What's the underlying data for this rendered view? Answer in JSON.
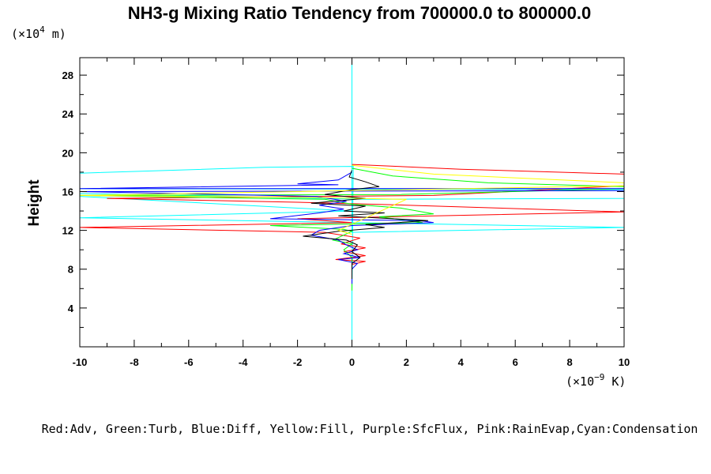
{
  "chart_data": {
    "type": "line",
    "title": "NH3-g Mixing Ratio Tendency from 700000.0 to 800000.0",
    "ylabel": "Height",
    "y_unit_prefix": "(×10",
    "y_unit_exp": "4",
    "y_unit_suffix": " m)",
    "x_unit_prefix": "(×10",
    "x_unit_exp": "−9",
    "x_unit_suffix": " K)",
    "legend_text": "Red:Adv, Green:Turb, Blue:Diff, Yellow:Fill, Purple:SfcFlux, Pink:RainEvap,Cyan:Condensation",
    "xlim": [
      -10,
      10
    ],
    "ylim": [
      0,
      29.8
    ],
    "x_ticks": [
      -10,
      -8,
      -6,
      -4,
      -2,
      0,
      2,
      4,
      6,
      8,
      10
    ],
    "x_tick_labels": [
      "-10",
      "-8",
      "-6",
      "-4",
      "-2",
      "0",
      "2",
      "4",
      "6",
      "8",
      "10"
    ],
    "y_ticks": [
      4,
      8,
      12,
      16,
      20,
      24,
      28
    ],
    "y_tick_labels": [
      "4",
      "8",
      "12",
      "16",
      "20",
      "24",
      "28"
    ],
    "series": [
      {
        "color": "#00ffff",
        "points": [
          [
            0,
            0
          ],
          [
            0,
            5.5
          ],
          [
            0.05,
            18.6
          ],
          [
            -3.2,
            18.5
          ],
          [
            -10,
            17.9
          ],
          [
            -10,
            16.3
          ],
          [
            10,
            16.2
          ],
          [
            10,
            15.3
          ],
          [
            0.5,
            15.2
          ],
          [
            -10,
            15.8
          ],
          [
            -10,
            15.5
          ],
          [
            0,
            14.0
          ],
          [
            -10,
            13.3
          ],
          [
            10,
            12.3
          ],
          [
            0,
            11.8
          ],
          [
            0,
            29.8
          ]
        ]
      },
      {
        "color": "#ff0000",
        "points": [
          [
            0,
            18.8
          ],
          [
            4,
            18.3
          ],
          [
            10,
            17.8
          ],
          [
            10,
            16.6
          ],
          [
            3,
            15.6
          ],
          [
            -9,
            15.3
          ],
          [
            -2,
            14.9
          ],
          [
            2,
            14.6
          ],
          [
            10,
            13.9
          ],
          [
            -2,
            13.2
          ],
          [
            0,
            12.8
          ],
          [
            -10,
            12.3
          ],
          [
            -1,
            11.8
          ],
          [
            0.3,
            11.2
          ],
          [
            -0.4,
            10.6
          ],
          [
            0.5,
            10.2
          ],
          [
            -0.3,
            9.8
          ],
          [
            0.5,
            9.4
          ],
          [
            -0.6,
            9.0
          ],
          [
            0.5,
            8.8
          ],
          [
            0,
            8.5
          ]
        ]
      },
      {
        "color": "#00ff00",
        "points": [
          [
            0,
            18.4
          ],
          [
            1.5,
            17.6
          ],
          [
            5,
            16.9
          ],
          [
            10,
            16.5
          ],
          [
            10,
            16.3
          ],
          [
            1.8,
            15.7
          ],
          [
            -10,
            15.6
          ],
          [
            -1,
            15.2
          ],
          [
            0,
            14.7
          ],
          [
            1.8,
            14.3
          ],
          [
            3,
            13.7
          ],
          [
            1,
            13.4
          ],
          [
            2.6,
            12.8
          ],
          [
            -3,
            12.5
          ],
          [
            -0.3,
            12.1
          ],
          [
            0,
            11.9
          ],
          [
            -0.7,
            11.0
          ],
          [
            0,
            10.6
          ],
          [
            -0.3,
            10.0
          ],
          [
            0,
            9.2
          ],
          [
            0,
            5.8
          ]
        ]
      },
      {
        "color": "#0000ff",
        "points": [
          [
            0,
            18.0
          ],
          [
            -0.5,
            17.2
          ],
          [
            -2,
            16.8
          ],
          [
            -0.5,
            16.7
          ],
          [
            -10,
            16.3
          ],
          [
            10,
            16.3
          ],
          [
            10,
            16.1
          ],
          [
            -10,
            16.0
          ],
          [
            -1.3,
            15.5
          ],
          [
            -0.2,
            15.0
          ],
          [
            -1.2,
            14.6
          ],
          [
            -0.3,
            14.2
          ],
          [
            -1.2,
            13.8
          ],
          [
            -3,
            13.2
          ],
          [
            2.5,
            13.0
          ],
          [
            3,
            12.8
          ],
          [
            0,
            12.5
          ],
          [
            -1.2,
            12.0
          ],
          [
            -1.5,
            11.5
          ],
          [
            -0.5,
            11.0
          ],
          [
            -0.2,
            10.5
          ],
          [
            0.2,
            10.0
          ],
          [
            -0.3,
            9.6
          ],
          [
            0.3,
            9.2
          ],
          [
            -0.5,
            9.0
          ],
          [
            0.2,
            8.6
          ],
          [
            0,
            8.0
          ],
          [
            0,
            6.5
          ]
        ]
      },
      {
        "color": "#000000",
        "points": [
          [
            0,
            18.2
          ],
          [
            -0.1,
            17.5
          ],
          [
            0.5,
            17.0
          ],
          [
            1,
            16.5
          ],
          [
            0,
            16.2
          ],
          [
            -1,
            15.7
          ],
          [
            0.5,
            15.3
          ],
          [
            -1.5,
            14.8
          ],
          [
            0.5,
            14.5
          ],
          [
            -0.3,
            14.0
          ],
          [
            1.2,
            13.8
          ],
          [
            -0.5,
            13.5
          ],
          [
            2.8,
            13.0
          ],
          [
            0.5,
            12.6
          ],
          [
            1.2,
            12.3
          ],
          [
            -0.5,
            11.9
          ],
          [
            -1.8,
            11.4
          ],
          [
            -0.2,
            11.0
          ],
          [
            0.2,
            10.5
          ],
          [
            0,
            9.8
          ],
          [
            0.3,
            9.2
          ],
          [
            0,
            8.6
          ],
          [
            0,
            7.0
          ]
        ]
      },
      {
        "color": "#ffff00",
        "points": [
          [
            0,
            18.7
          ],
          [
            3,
            17.8
          ],
          [
            10,
            16.9
          ],
          [
            10,
            16.6
          ],
          [
            -10,
            15.6
          ],
          [
            -1.5,
            15.4
          ],
          [
            2,
            15.2
          ],
          [
            -0.5,
            12.0
          ],
          [
            0,
            11.6
          ]
        ]
      }
    ]
  }
}
